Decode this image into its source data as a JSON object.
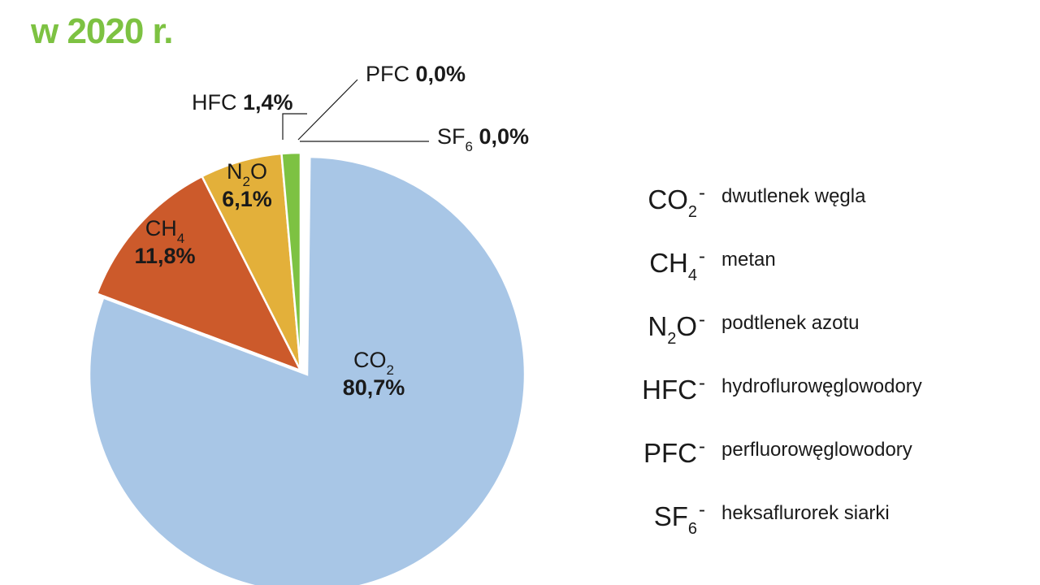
{
  "title": "w 2020 r.",
  "chart_data": {
    "type": "pie",
    "categories": [
      "CO2",
      "CH4",
      "N2O",
      "HFC",
      "PFC",
      "SF6"
    ],
    "values": [
      80.7,
      11.8,
      6.1,
      1.4,
      0.0,
      0.0
    ],
    "value_labels": [
      "80,7%",
      "11,8%",
      "6,1%",
      "1,4%",
      "0,0%",
      "0,0%"
    ],
    "label_base": [
      "CO",
      "CH",
      "N",
      "HFC",
      "PFC",
      "SF"
    ],
    "label_sub": [
      "2",
      "4",
      "2",
      "",
      "",
      "6"
    ],
    "label_tail": [
      "",
      "",
      "O",
      "",
      "",
      ""
    ],
    "colors": [
      "#a8c6e6",
      "#cc5a2b",
      "#e3b03a",
      "#7dc242",
      "#3a3a3a",
      "#2e4a8a"
    ],
    "exploded_slice": "CO2"
  },
  "legend": [
    {
      "base": "CO",
      "sub": "2",
      "tail": "",
      "dash": "-",
      "desc": "dwutlenek węgla"
    },
    {
      "base": "CH",
      "sub": "4",
      "tail": "",
      "dash": "-",
      "desc": "metan"
    },
    {
      "base": "N",
      "sub": "2",
      "tail": "O",
      "dash": "-",
      "desc": "podtlenek azotu"
    },
    {
      "base": "HFC",
      "sub": "",
      "tail": "",
      "dash": "-",
      "desc": "hydroflurowęglowodory"
    },
    {
      "base": "PFC",
      "sub": "",
      "tail": "",
      "dash": "-",
      "desc": "perfluorowęglowodory"
    },
    {
      "base": "SF",
      "sub": "6",
      "tail": "",
      "dash": "-",
      "desc": "heksaflurorek siarki"
    }
  ]
}
